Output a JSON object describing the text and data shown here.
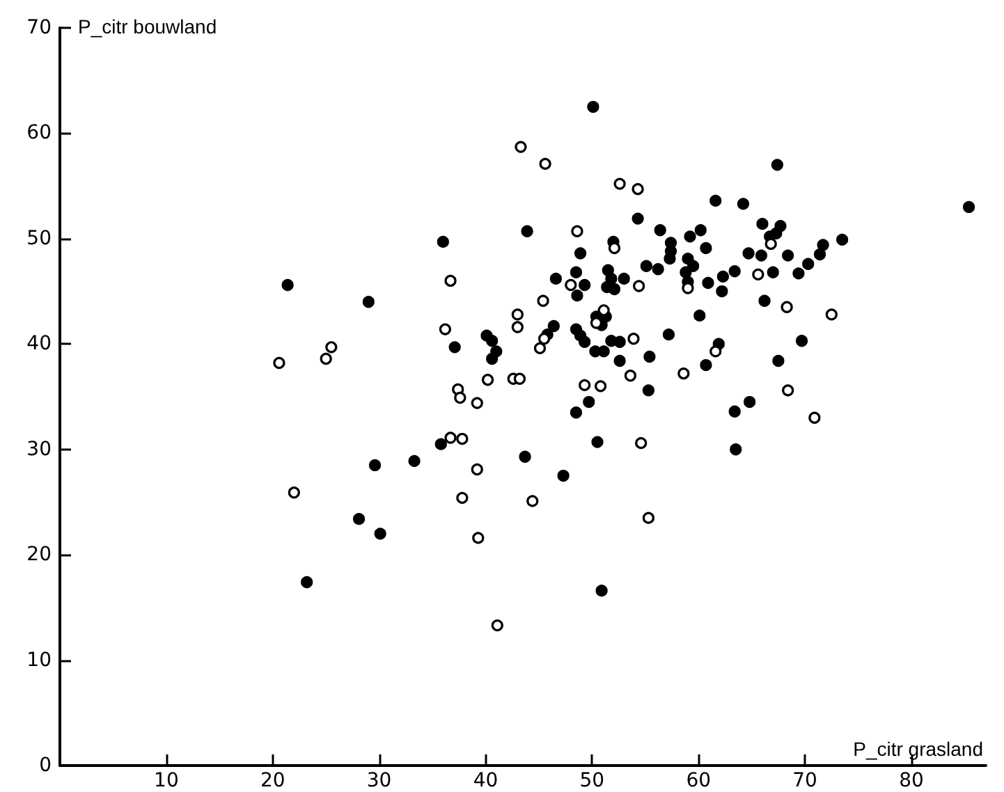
{
  "chart_data": {
    "type": "scatter",
    "xlabel": "P_citr grasland",
    "ylabel": "P_citr bouwland",
    "xlim": [
      0,
      87
    ],
    "ylim": [
      0,
      70
    ],
    "xticks": [
      10,
      20,
      30,
      40,
      50,
      60,
      70,
      80
    ],
    "yticks": [
      0,
      10,
      20,
      30,
      40,
      50,
      60,
      70
    ],
    "grid": false,
    "marker": "circle",
    "series": [
      {
        "color": "#000000",
        "x": [
          21.4,
          29.0,
          36.0,
          37.1,
          40.1,
          40.6,
          40.6,
          41.0,
          35.8,
          29.6,
          33.3,
          28.1,
          30.1,
          23.2,
          50.1,
          67.4,
          85.4,
          61.6,
          64.2,
          54.3,
          43.9,
          56.4,
          59.2,
          60.2,
          66.0,
          67.7,
          67.3,
          66.7,
          73.5,
          71.7,
          71.4,
          70.3,
          69.4,
          68.4,
          67.0,
          65.9,
          64.7,
          62.3,
          63.4,
          62.2,
          60.9,
          60.7,
          57.4,
          57.4,
          57.3,
          59.0,
          59.5,
          58.8,
          59.0,
          56.2,
          55.1,
          48.9,
          48.5,
          49.3,
          48.6,
          46.6,
          51.5,
          51.8,
          53.0,
          52.1,
          51.4,
          66.2,
          60.1,
          69.7,
          67.5,
          46.4,
          45.8,
          48.5,
          48.9,
          49.3,
          50.4,
          51.3,
          50.9,
          51.8,
          52.6,
          50.3,
          51.1,
          52.6,
          55.4,
          57.2,
          61.9,
          60.7,
          55.3,
          49.7,
          48.5,
          63.4,
          64.8,
          52.0,
          50.5,
          43.7,
          47.3,
          63.5,
          50.9
        ],
        "values": [
          45.6,
          44.0,
          49.7,
          39.7,
          40.8,
          40.3,
          38.6,
          39.3,
          30.5,
          28.5,
          28.9,
          23.4,
          22.0,
          17.4,
          62.5,
          57.0,
          53.0,
          53.6,
          53.3,
          51.9,
          50.7,
          50.8,
          50.2,
          50.8,
          51.4,
          51.2,
          50.5,
          50.2,
          49.9,
          49.4,
          48.5,
          47.6,
          46.7,
          48.4,
          46.8,
          48.4,
          48.6,
          46.4,
          46.9,
          45.0,
          45.8,
          49.1,
          49.6,
          48.8,
          48.1,
          48.1,
          47.4,
          46.8,
          45.9,
          47.1,
          47.4,
          48.6,
          46.8,
          45.6,
          44.6,
          46.2,
          47.0,
          46.2,
          46.2,
          45.2,
          45.4,
          44.1,
          42.7,
          40.3,
          38.4,
          41.7,
          40.9,
          41.4,
          40.8,
          40.2,
          42.6,
          42.6,
          41.8,
          40.3,
          40.2,
          39.3,
          39.3,
          38.4,
          38.8,
          40.9,
          40.0,
          38.0,
          35.6,
          34.5,
          33.5,
          33.6,
          34.5,
          49.7,
          30.7,
          29.3,
          27.5,
          30.0,
          16.6
        ]
      },
      {
        "color": "#ffffff",
        "x": [
          20.6,
          25.0,
          25.5,
          36.7,
          36.2,
          37.4,
          37.6,
          39.2,
          40.2,
          36.7,
          37.8,
          39.2,
          37.8,
          39.3,
          22.0,
          41.1,
          43.3,
          45.6,
          52.6,
          54.3,
          48.6,
          52.1,
          66.8,
          65.6,
          48.0,
          54.4,
          59.0,
          45.4,
          68.3,
          72.5,
          43.0,
          43.0,
          51.1,
          50.4,
          53.9,
          45.5,
          45.1,
          61.6,
          42.6,
          43.2,
          49.3,
          50.8,
          53.6,
          58.6,
          68.4,
          70.9,
          54.6,
          44.4,
          55.3
        ],
        "values": [
          38.2,
          38.6,
          39.7,
          46.0,
          41.4,
          35.7,
          34.9,
          34.4,
          36.6,
          31.1,
          31.0,
          28.1,
          25.4,
          21.6,
          25.9,
          13.3,
          58.7,
          57.1,
          55.2,
          54.7,
          50.7,
          49.1,
          49.5,
          46.6,
          45.6,
          45.5,
          45.3,
          44.1,
          43.5,
          42.8,
          42.8,
          41.6,
          43.2,
          42.0,
          40.5,
          40.5,
          39.6,
          39.3,
          36.7,
          36.7,
          36.1,
          36.0,
          37.0,
          37.2,
          35.6,
          33.0,
          30.6,
          25.1,
          23.5
        ]
      }
    ]
  }
}
